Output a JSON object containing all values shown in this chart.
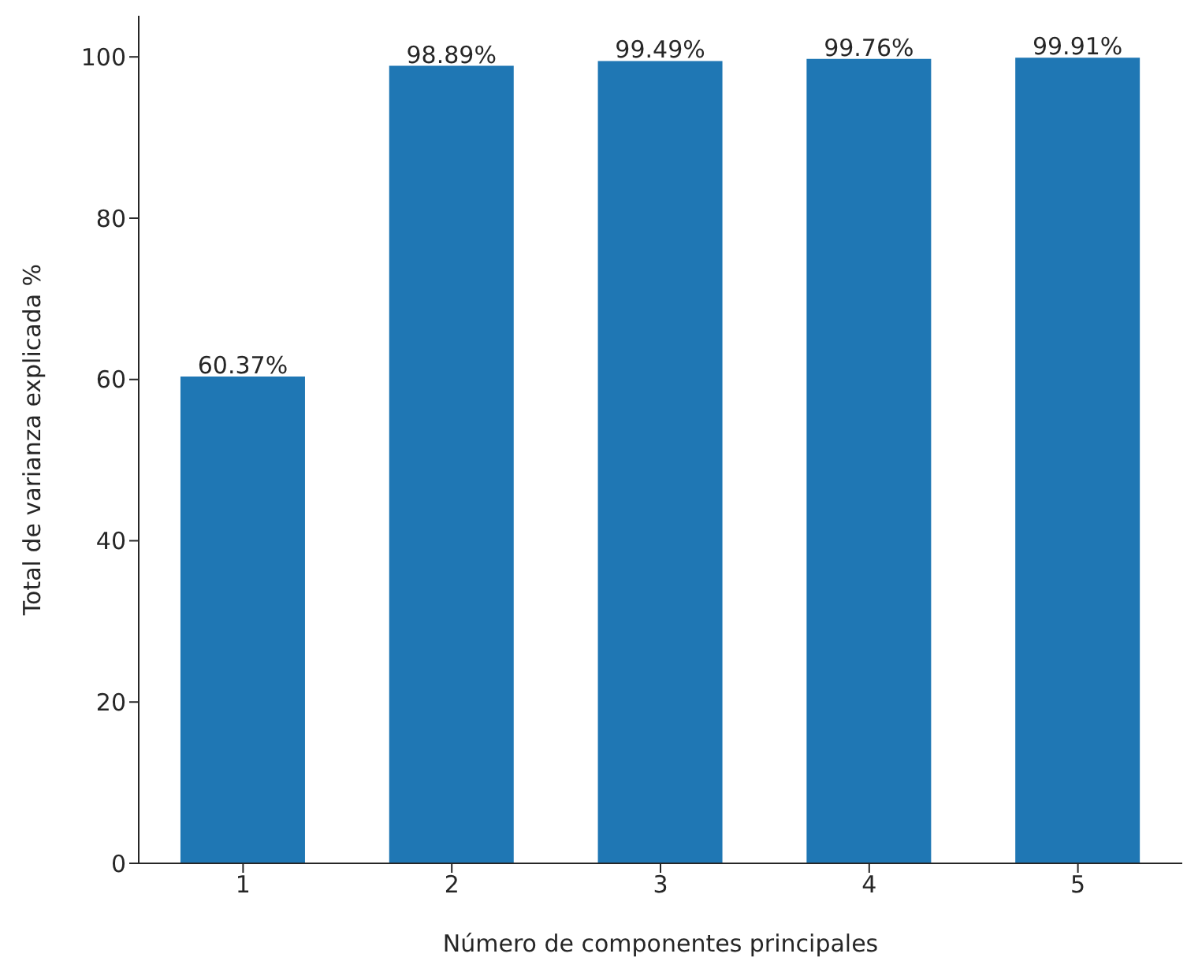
{
  "chart_data": {
    "type": "bar",
    "categories": [
      "1",
      "2",
      "3",
      "4",
      "5"
    ],
    "values": [
      60.37,
      98.89,
      99.49,
      99.76,
      99.91
    ],
    "color": "#1f77b4",
    "value_labels": [
      "60.37%",
      "98.89%",
      "99.49%",
      "99.76%",
      "99.91%"
    ],
    "xlabel": "Número de componentes principales",
    "ylabel": "Total de varianza explicada %",
    "ylim": [
      0,
      105.1
    ],
    "yticks": [
      0,
      20,
      40,
      60,
      80,
      100
    ],
    "grid": false,
    "legend": false
  }
}
